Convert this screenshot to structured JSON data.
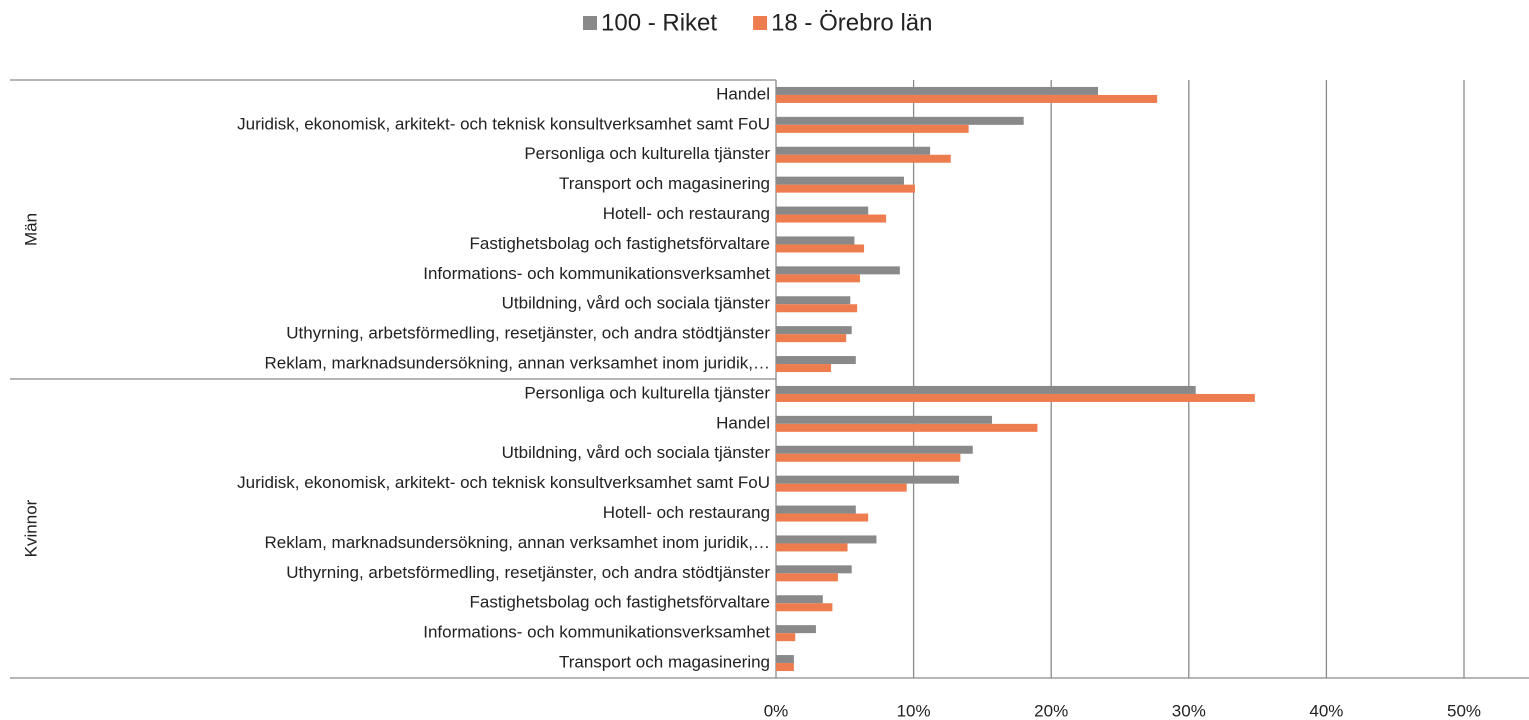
{
  "chart_data": {
    "type": "hbar_grouped",
    "group_labels": [
      "Män",
      "Kvinnor"
    ],
    "categories": [
      "Handel",
      "Juridisk, ekonomisk, arkitekt- och teknisk konsultverksamhet samt FoU",
      "Personliga och kulturella tjänster",
      "Transport och magasinering",
      "Hotell- och restaurang",
      "Fastighetsbolag och fastighetsförvaltare",
      "Informations- och kommunikationsverksamhet",
      "Utbildning, vård och sociala tjänster",
      "Uthyrning, arbetsförmedling, resetjänster, och andra stödtjänster",
      "Reklam, marknadsundersökning, annan verksamhet inom juridik,…",
      "Personliga och kulturella tjänster",
      "Handel",
      "Utbildning, vård och sociala tjänster",
      "Juridisk, ekonomisk, arkitekt- och teknisk konsultverksamhet samt FoU",
      "Hotell- och restaurang",
      "Reklam, marknadsundersökning, annan verksamhet inom juridik,…",
      "Uthyrning, arbetsförmedling, resetjänster, och andra stödtjänster",
      "Fastighetsbolag och fastighetsförvaltare",
      "Informations- och kommunikationsverksamhet",
      "Transport och magasinering"
    ],
    "series": [
      {
        "name": "100 - Riket",
        "color": "#898989",
        "values": [
          23.4,
          18.0,
          11.2,
          9.3,
          6.7,
          5.7,
          9.0,
          5.4,
          5.5,
          5.8,
          30.5,
          15.7,
          14.3,
          13.3,
          5.8,
          7.3,
          5.5,
          3.4,
          2.9,
          1.3
        ]
      },
      {
        "name": "18 - Örebro län",
        "color": "#ed7d4f",
        "values": [
          27.7,
          14.0,
          12.7,
          10.1,
          8.0,
          6.4,
          6.1,
          5.9,
          5.1,
          4.0,
          34.8,
          19.0,
          13.4,
          9.5,
          6.7,
          5.2,
          4.5,
          4.1,
          1.4,
          1.3
        ]
      }
    ],
    "xlim": [
      0,
      50
    ],
    "xticks": [
      {
        "value": 0,
        "label": "0%"
      },
      {
        "value": 10,
        "label": "10%"
      },
      {
        "value": 20,
        "label": "20%"
      },
      {
        "value": 30,
        "label": "30%"
      },
      {
        "value": 40,
        "label": "40%"
      },
      {
        "value": 50,
        "label": "50%"
      }
    ],
    "grid": true
  }
}
